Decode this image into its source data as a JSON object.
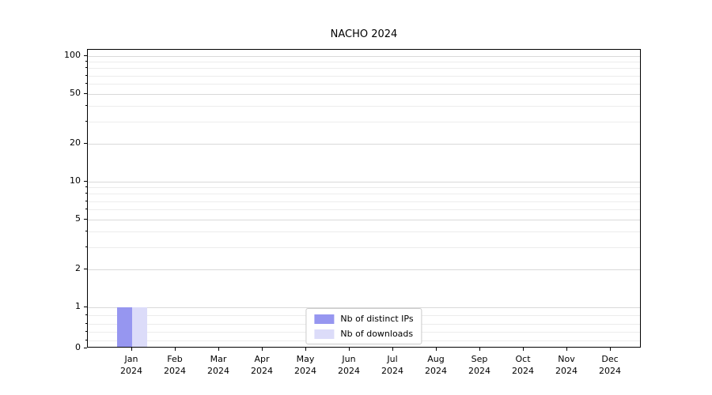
{
  "chart_data": {
    "type": "bar",
    "title": "NACHO 2024",
    "yscale": "symlog",
    "ylim": [
      0,
      100
    ],
    "yticks": [
      0,
      1,
      2,
      5,
      10,
      20,
      50,
      100
    ],
    "grid": true,
    "legend_position": "lower center",
    "x": [
      {
        "month": "Jan",
        "year": "2024"
      },
      {
        "month": "Feb",
        "year": "2024"
      },
      {
        "month": "Mar",
        "year": "2024"
      },
      {
        "month": "Apr",
        "year": "2024"
      },
      {
        "month": "May",
        "year": "2024"
      },
      {
        "month": "Jun",
        "year": "2024"
      },
      {
        "month": "Jul",
        "year": "2024"
      },
      {
        "month": "Aug",
        "year": "2024"
      },
      {
        "month": "Sep",
        "year": "2024"
      },
      {
        "month": "Oct",
        "year": "2024"
      },
      {
        "month": "Nov",
        "year": "2024"
      },
      {
        "month": "Dec",
        "year": "2024"
      }
    ],
    "series": [
      {
        "name": "Nb of distinct IPs",
        "color": "#9696f0",
        "values": [
          1,
          0,
          0,
          0,
          0,
          0,
          0,
          0,
          0,
          0,
          0,
          0
        ]
      },
      {
        "name": "Nb of downloads",
        "color": "#dcdcf9",
        "values": [
          1,
          0,
          0,
          0,
          0,
          0,
          0,
          0,
          0,
          0,
          0,
          0
        ]
      }
    ]
  },
  "colors": {
    "grid_major": "#d9d9d9",
    "grid_minor": "#ececec",
    "axis": "#000000",
    "background": "#ffffff",
    "legend_border": "#cccccc"
  }
}
